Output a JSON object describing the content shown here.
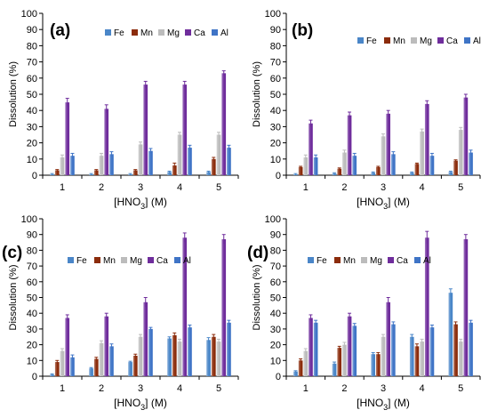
{
  "figure": {
    "chart_data": [
      {
        "type": "bar",
        "panel_label": "(a)",
        "title": "",
        "xlabel": "[HNO3] (M)",
        "ylabel": "Dissolution (%)",
        "ylim": [
          0,
          100
        ],
        "yticks": [
          0,
          10,
          20,
          30,
          40,
          50,
          60,
          70,
          80,
          90,
          100
        ],
        "categories": [
          "1",
          "2",
          "3",
          "4",
          "5"
        ],
        "series": [
          {
            "name": "Fe",
            "values": [
              0.5,
              0.5,
              0.5,
              2,
              2
            ],
            "errors": [
              0.5,
              0.5,
              0.5,
              0.5,
              0.5
            ]
          },
          {
            "name": "Mn",
            "values": [
              3,
              3,
              3,
              6,
              10
            ],
            "errors": [
              0.5,
              0.5,
              0.5,
              1.5,
              1
            ]
          },
          {
            "name": "Mg",
            "values": [
              11,
              12,
              19,
              25,
              25
            ],
            "errors": [
              1.5,
              1.5,
              1.5,
              1.5,
              1.5
            ]
          },
          {
            "name": "Ca",
            "values": [
              45,
              41,
              56,
              56,
              63
            ],
            "errors": [
              2.5,
              2.5,
              2,
              2,
              1.5
            ]
          },
          {
            "name": "Al",
            "values": [
              12,
              13,
              15,
              17,
              17
            ],
            "errors": [
              1.5,
              1.5,
              1.5,
              1.5,
              1.5
            ]
          }
        ],
        "grid": false,
        "legend_position": "top-right"
      },
      {
        "type": "bar",
        "panel_label": "(b)",
        "title": "",
        "xlabel": "[HNO3] (M)",
        "ylabel": "Dissolution (%)",
        "ylim": [
          0,
          100
        ],
        "yticks": [
          0,
          10,
          20,
          30,
          40,
          50,
          60,
          70,
          80,
          90,
          100
        ],
        "categories": [
          "1",
          "2",
          "3",
          "4",
          "5"
        ],
        "series": [
          {
            "name": "Fe",
            "values": [
              0.5,
              1,
              1.5,
              1.5,
              2
            ],
            "errors": [
              0.5,
              0.5,
              0.5,
              0.5,
              0.5
            ]
          },
          {
            "name": "Mn",
            "values": [
              5,
              4,
              5,
              7,
              9
            ],
            "errors": [
              0.5,
              0.5,
              0.5,
              0.5,
              0.5
            ]
          },
          {
            "name": "Mg",
            "values": [
              11,
              14,
              24,
              27,
              28
            ],
            "errors": [
              1.5,
              1.5,
              1.5,
              1.5,
              1.5
            ]
          },
          {
            "name": "Ca",
            "values": [
              32,
              37,
              38,
              44,
              48
            ],
            "errors": [
              2,
              2,
              2,
              2,
              2
            ]
          },
          {
            "name": "Al",
            "values": [
              11,
              12,
              13,
              12,
              14
            ],
            "errors": [
              1.5,
              1.5,
              1.5,
              1.5,
              1.5
            ]
          }
        ],
        "grid": false,
        "legend_position": "top-right"
      },
      {
        "type": "bar",
        "panel_label": "(c)",
        "title": "",
        "xlabel": "[HNO3] (M)",
        "ylabel": "Dissolution (%)",
        "ylim": [
          0,
          100
        ],
        "yticks": [
          0,
          10,
          20,
          30,
          40,
          50,
          60,
          70,
          80,
          90,
          100
        ],
        "categories": [
          "1",
          "2",
          "3",
          "4",
          "5"
        ],
        "series": [
          {
            "name": "Fe",
            "values": [
              1,
              5,
              9,
              24,
              23
            ],
            "errors": [
              0.5,
              0.5,
              0.5,
              1,
              1.5
            ]
          },
          {
            "name": "Mn",
            "values": [
              9,
              11,
              13,
              26,
              25
            ],
            "errors": [
              1,
              1,
              1,
              1.5,
              1.5
            ]
          },
          {
            "name": "Mg",
            "values": [
              16,
              21,
              25,
              22,
              22
            ],
            "errors": [
              1.5,
              1.5,
              1.5,
              1.5,
              1.5
            ]
          },
          {
            "name": "Ca",
            "values": [
              37,
              38,
              47,
              88,
              87
            ],
            "errors": [
              2,
              2,
              3,
              3,
              3
            ]
          },
          {
            "name": "Al",
            "values": [
              12,
              19,
              30,
              31,
              34
            ],
            "errors": [
              1.5,
              1.5,
              1,
              1.5,
              1.5
            ]
          }
        ],
        "grid": false,
        "legend_position": "top-right"
      },
      {
        "type": "bar",
        "panel_label": "(d)",
        "title": "",
        "xlabel": "[HNO3] (M)",
        "ylabel": "Dissolution (%)",
        "ylim": [
          0,
          100
        ],
        "yticks": [
          0,
          10,
          20,
          30,
          40,
          50,
          60,
          70,
          80,
          90,
          100
        ],
        "categories": [
          "1",
          "2",
          "3",
          "4",
          "5"
        ],
        "series": [
          {
            "name": "Fe",
            "values": [
              3,
              8,
              14,
              25,
              53
            ],
            "errors": [
              0.5,
              1,
              1,
              1.5,
              2.5
            ]
          },
          {
            "name": "Mn",
            "values": [
              10,
              18,
              14,
              19,
              33
            ],
            "errors": [
              1,
              1,
              1,
              1.5,
              1.5
            ]
          },
          {
            "name": "Mg",
            "values": [
              16,
              20,
              25,
              22,
              22
            ],
            "errors": [
              1.5,
              1.5,
              1.5,
              1.5,
              1.5
            ]
          },
          {
            "name": "Ca",
            "values": [
              37,
              38,
              47,
              88,
              87
            ],
            "errors": [
              2,
              2,
              3,
              4,
              3
            ]
          },
          {
            "name": "Al",
            "values": [
              34,
              32,
              33,
              31,
              34
            ],
            "errors": [
              1.5,
              1.5,
              1.5,
              1.5,
              1.5
            ]
          }
        ],
        "grid": false,
        "legend_position": "top-right"
      }
    ],
    "series_colors": [
      "#4a86c8",
      "#8b2c0c",
      "#bcbcbc",
      "#6f2d9c",
      "#3f74c6"
    ]
  }
}
